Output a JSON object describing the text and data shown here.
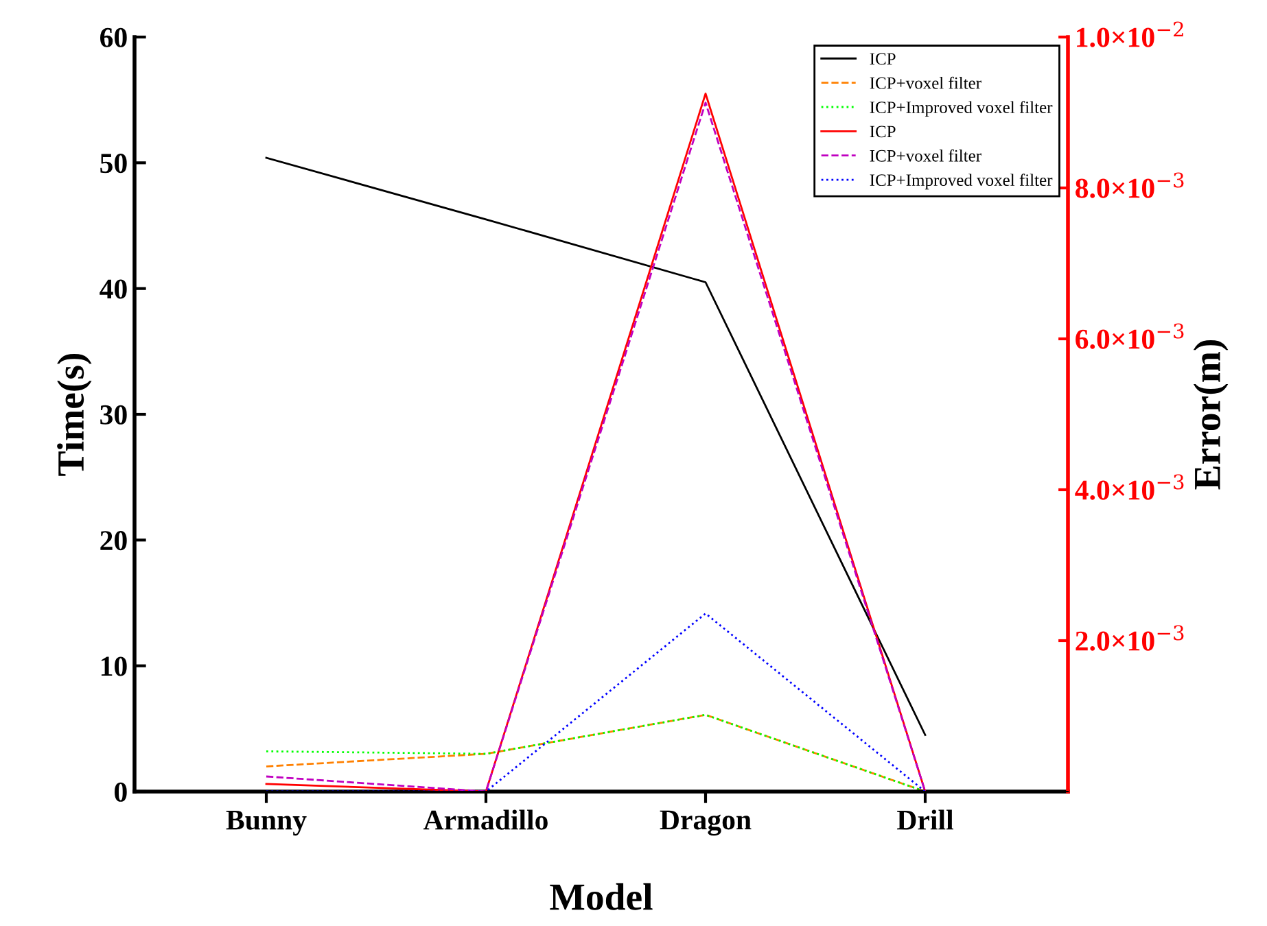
{
  "chart_data": {
    "type": "line",
    "xlabel": "Model",
    "ylabel": "Time(s)",
    "y2label": "Error(m)",
    "categories": [
      "Bunny",
      "Armadillo",
      "Dragon",
      "Drill"
    ],
    "ylim": [
      0,
      60
    ],
    "yticks": [
      0,
      10,
      20,
      30,
      40,
      50,
      60
    ],
    "y2lim": [
      0,
      0.01
    ],
    "y2ticks": [
      {
        "value": 0.002,
        "label": "2.0×10$^{−3}$"
      },
      {
        "value": 0.004,
        "label": "4.0×10$^{−3}$"
      },
      {
        "value": 0.006,
        "label": "6.0×10$^{−3}$"
      },
      {
        "value": 0.008,
        "label": "8.0×10$^{−3}$"
      },
      {
        "value": 0.01,
        "label": "1.0×10$^{−2}$"
      }
    ],
    "grid": false,
    "legend": "top right",
    "marker": "none",
    "series": [
      {
        "name": "ICP",
        "color": "#000000",
        "line_style": "solid",
        "values": [
          50.4,
          45.5,
          40.5,
          4.5
        ]
      },
      {
        "name": "ICP+voxel filter",
        "color": "#ff8000",
        "line_style": "dashed",
        "values": [
          2.0,
          3.0,
          6.1,
          0
        ]
      },
      {
        "name": "ICP+Improved voxel filter",
        "color": "#00ff00",
        "line_style": "dotted",
        "values": [
          3.2,
          3.0,
          6.1,
          0
        ]
      },
      {
        "name": "ICP",
        "color": "#ff0000",
        "line_style": "solid",
        "axis": "y2",
        "values": [
          0.0001,
          0,
          0.00925,
          0
        ]
      },
      {
        "name": "ICP+voxel filter",
        "color": "#c000c0",
        "line_style": "dashed",
        "axis": "y2",
        "values": [
          0.0002,
          0,
          0.00913,
          0
        ]
      },
      {
        "name": "ICP+Improved voxel filter",
        "color": "#0000ff",
        "line_style": "dotted",
        "axis": "y2",
        "values": [
          0,
          0,
          0.00236,
          0
        ]
      }
    ]
  }
}
